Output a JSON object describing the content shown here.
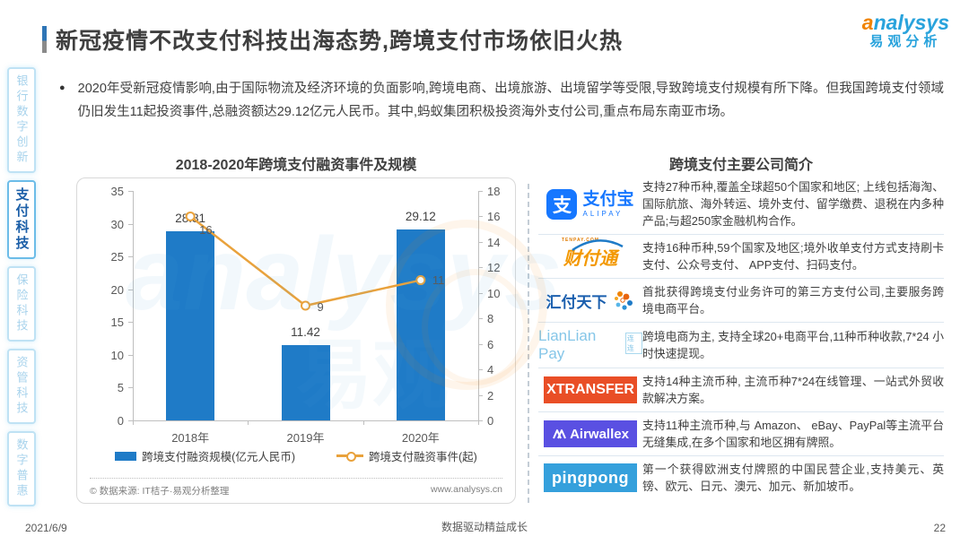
{
  "header": {
    "title": "新冠疫情不改支付科技出海态势,跨境支付市场依旧火热"
  },
  "brand": {
    "swoosh": "a",
    "rest": "nalysys",
    "cn": "易观分析"
  },
  "sidebar": {
    "items": [
      {
        "label": "银行数字创新",
        "active": false
      },
      {
        "label": "支付科技",
        "active": true
      },
      {
        "label": "保险科技",
        "active": false
      },
      {
        "label": "资管科技",
        "active": false
      },
      {
        "label": "数字普惠",
        "active": false
      }
    ]
  },
  "bullet": {
    "text": "2020年受新冠疫情影响,由于国际物流及经济环境的负面影响,跨境电商、出境旅游、出境留学等受限,导致跨境支付规模有所下降。但我国跨境支付领域仍旧发生11起投资事件,总融资额达29.12亿元人民币。其中,蚂蚁集团积极投资海外支付公司,重点布局东南亚市场。"
  },
  "chart_data": {
    "type": "bar+line",
    "title": "2018-2020年跨境支付融资事件及规模",
    "categories": [
      "2018年",
      "2019年",
      "2020年"
    ],
    "series": [
      {
        "name": "跨境支付融资规模(亿元人民币)",
        "type": "bar",
        "axis": "left",
        "color": "#1f7bc7",
        "values": [
          28.81,
          11.42,
          29.12
        ]
      },
      {
        "name": "跨境支付融资事件(起)",
        "type": "line",
        "axis": "right",
        "color": "#e9a23c",
        "values": [
          16,
          9,
          11
        ]
      }
    ],
    "left_axis": {
      "min": 0,
      "max": 35,
      "step": 5
    },
    "right_axis": {
      "min": 0,
      "max": 18,
      "step": 2
    },
    "legend_position": "bottom",
    "grid": false,
    "source": "© 数据来源: IT桔子·易观分析整理",
    "site": "www.analysys.cn"
  },
  "companies": {
    "title": "跨境支付主要公司简介",
    "rows": [
      {
        "logo": "alipay",
        "logo_icon": "支",
        "logo_cn": "支付宝",
        "logo_en": "ALIPAY",
        "desc": "支持27种币种,覆盖全球超50个国家和地区; 上线包括海淘、国际航旅、海外转运、境外支付、留学缴费、退税在内多种产品;与超250家金融机构合作。"
      },
      {
        "logo": "tenpay",
        "logo_cn": "财付通",
        "logo_en": "TENPAY.COM",
        "desc": "支持16种币种,59个国家及地区;境外收单支付方式支持刷卡支付、公众号支付、 APP支付、扫码支付。"
      },
      {
        "logo": "huifu",
        "logo_cn": "汇付天下",
        "desc": "首批获得跨境支付业务许可的第三方支付公司,主要服务跨境电商平台。"
      },
      {
        "logo": "lianlian",
        "logo_en": "LianLian Pay",
        "logo_badge": "连连",
        "desc": "跨境电商为主, 支持全球20+电商平台,11种币种收款,7*24 小时快速提现。"
      },
      {
        "logo": "xtransfer",
        "logo_en": "XTRANSFER",
        "desc": "支持14种主流币种, 主流币种7*24在线管理、一站式外贸收款解决方案。"
      },
      {
        "logo": "airwallex",
        "logo_en": "Airwallex",
        "desc": "支持11种主流币种,与 Amazon、 eBay、PayPal等主流平台无缝集成,在多个国家和地区拥有牌照。"
      },
      {
        "logo": "pingpong",
        "logo_en": "pingpong",
        "desc": "第一个获得欧洲支付牌照的中国民营企业,支持美元、英镑、欧元、日元、澳元、加元、新加坡币。"
      }
    ]
  },
  "footer": {
    "date": "2021/6/9",
    "slogan": "数据驱动精益成长",
    "page": "22"
  }
}
